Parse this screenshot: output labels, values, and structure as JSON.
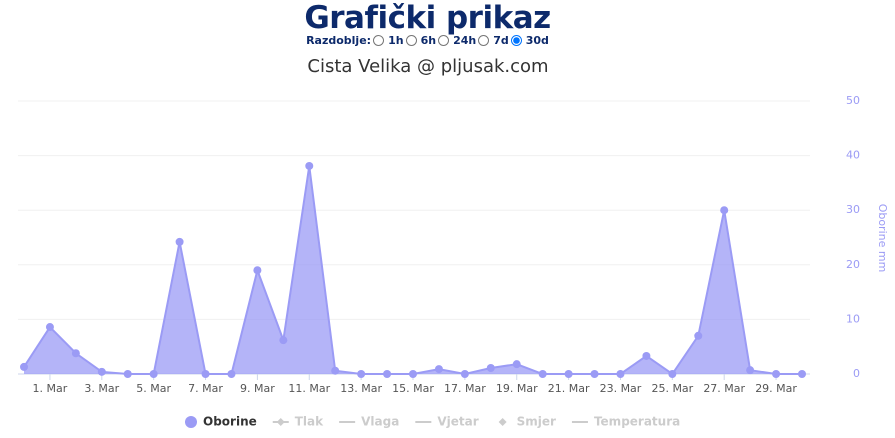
{
  "header": {
    "title": "Grafički prikaz",
    "period_label": "Razdoblje:",
    "periods": [
      "1h",
      "6h",
      "24h",
      "7d",
      "30d"
    ],
    "selected": 4
  },
  "chart_data": {
    "type": "area",
    "title": "Cista Velika @ pljusak.com",
    "ylabel": "Oborine mm",
    "yaxis_side": "right",
    "categories": [
      null,
      "1. Mar",
      null,
      "3. Mar",
      null,
      "5. Mar",
      null,
      "7. Mar",
      null,
      "9. Mar",
      null,
      "11. Mar",
      null,
      "13. Mar",
      null,
      "15. Mar",
      null,
      "17. Mar",
      null,
      "19. Mar",
      null,
      "21. Mar",
      null,
      "23. Mar",
      null,
      "25. Mar",
      null,
      "27. Mar",
      null,
      "29. Mar",
      null
    ],
    "series": [
      {
        "name": "Oborine",
        "color": "#9b9bf5",
        "marker": "circle",
        "visible": true,
        "values": [
          1.3,
          8.6,
          3.8,
          0.4,
          0,
          0,
          24.2,
          0,
          0,
          19.0,
          6.2,
          38.1,
          0.6,
          0,
          0,
          0,
          0.9,
          0,
          1.1,
          1.8,
          0,
          0,
          0,
          0,
          3.3,
          0,
          7.0,
          30.0,
          0.7,
          0,
          0
        ]
      },
      {
        "name": "Tlak",
        "marker": "line-diamond",
        "visible": false
      },
      {
        "name": "Vlaga",
        "marker": "line",
        "visible": false
      },
      {
        "name": "Vjetar",
        "marker": "line",
        "visible": false
      },
      {
        "name": "Smjer",
        "marker": "diamond",
        "visible": false
      },
      {
        "name": "Temperatura",
        "marker": "line",
        "visible": false
      }
    ],
    "ylim": [
      0,
      50
    ],
    "yticks": [
      0,
      10,
      20,
      30,
      40,
      50
    ],
    "grid": true
  }
}
